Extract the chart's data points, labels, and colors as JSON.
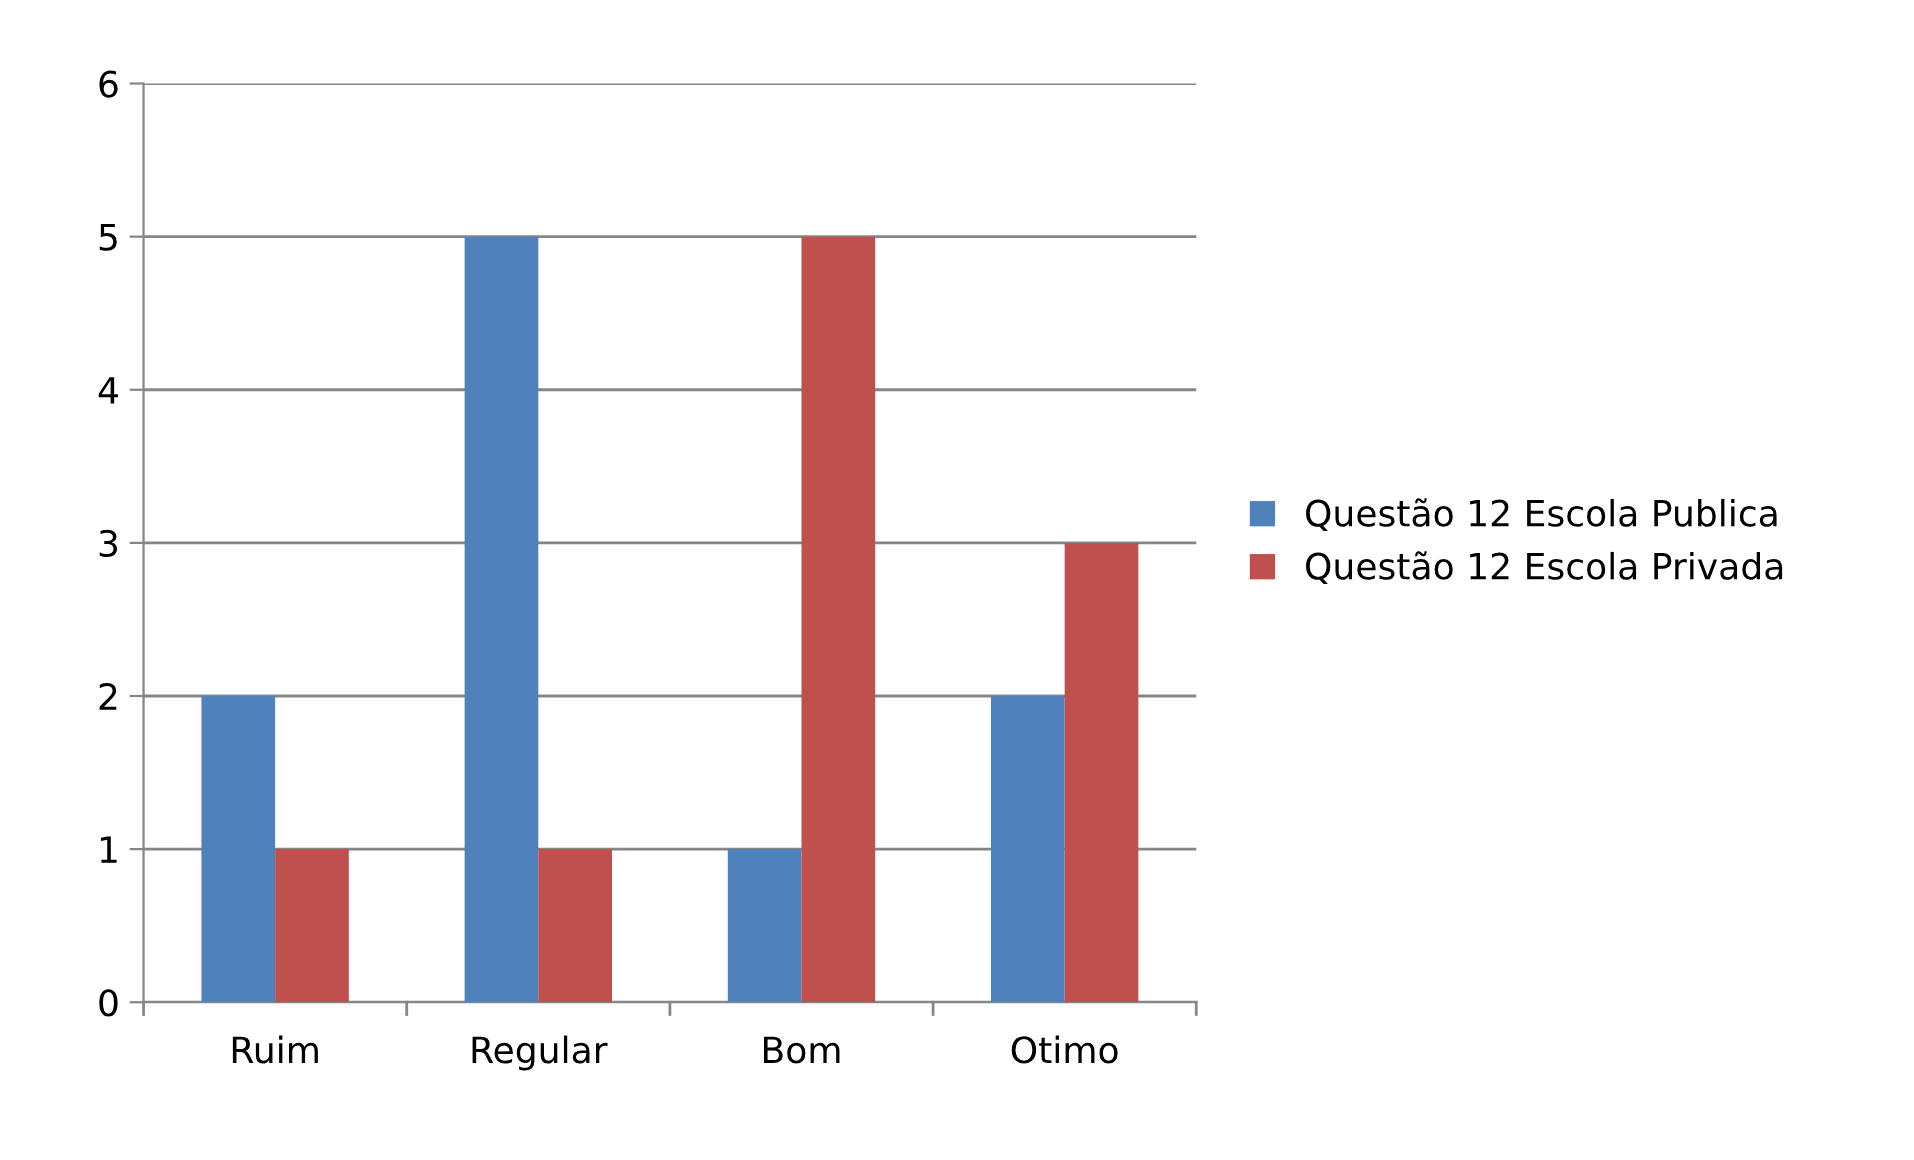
{
  "chart_data": {
    "type": "bar",
    "categories": [
      "Ruim",
      "Regular",
      "Bom",
      "Otimo"
    ],
    "series": [
      {
        "name": "Questão 12 Escola Publica",
        "color": "#4f81bd",
        "values": [
          2,
          5,
          1,
          2
        ]
      },
      {
        "name": "Questão 12 Escola Privada",
        "color": "#c0504d",
        "values": [
          1,
          1,
          5,
          3
        ]
      }
    ],
    "ylim": [
      0,
      6
    ],
    "yticks": [
      0,
      1,
      2,
      3,
      4,
      5,
      6
    ],
    "grid": "y",
    "legend": "right"
  }
}
